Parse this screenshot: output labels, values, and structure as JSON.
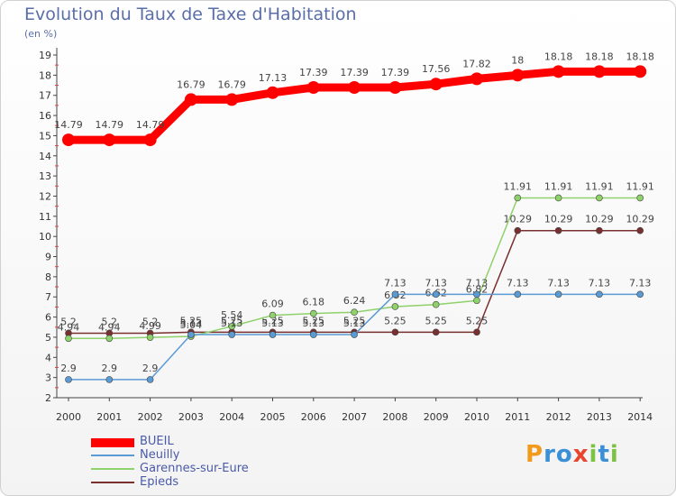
{
  "title": "Evolution du Taux de Taxe d'Habitation",
  "unit": "(en %)",
  "logo": {
    "letters": [
      "P",
      "r",
      "o",
      "x",
      "i",
      "t",
      "i"
    ],
    "colors": [
      "#f29a1c",
      "#3a8fd6",
      "#3a8fd6",
      "#e8452c",
      "#7cc243",
      "#3a8fd6",
      "#7cc243"
    ]
  },
  "chart_data": {
    "type": "line",
    "x": [
      "2000",
      "2001",
      "2002",
      "2003",
      "2004",
      "2005",
      "2006",
      "2007",
      "2008",
      "2009",
      "2010",
      "2011",
      "2012",
      "2013",
      "2014"
    ],
    "ylim": [
      2,
      19
    ],
    "yticks": [
      "2",
      "3",
      "4",
      "5",
      "6",
      "7",
      "8",
      "9",
      "10",
      "11",
      "12",
      "13",
      "14",
      "15",
      "16",
      "17",
      "18",
      "19"
    ],
    "grid": false,
    "legend_position": "bottom-left",
    "series": [
      {
        "name": "BUEIL",
        "color": "#ff0000",
        "values": [
          14.79,
          14.79,
          14.79,
          16.79,
          16.79,
          17.13,
          17.39,
          17.39,
          17.39,
          17.56,
          17.82,
          18,
          18.18,
          18.18,
          18.18
        ],
        "labels": [
          "14.79",
          "14.79",
          "14.79",
          "16.79",
          "16.79",
          "17.13",
          "17.39",
          "17.39",
          "17.39",
          "17.56",
          "17.82",
          "18",
          "18.18",
          "18.18",
          "18.18"
        ]
      },
      {
        "name": "Neuilly",
        "color": "#5b9bd5",
        "values": [
          2.9,
          2.9,
          2.9,
          5.13,
          5.13,
          5.13,
          5.13,
          5.13,
          7.13,
          7.13,
          7.13,
          7.13,
          7.13,
          7.13,
          7.13
        ],
        "labels": [
          "2.9",
          "2.9",
          "2.9",
          "5.13",
          "5.13",
          "5.13",
          "5.13",
          "5.13",
          "7.13",
          "7.13",
          "7.13",
          "7.13",
          "7.13",
          "7.13",
          "7.13"
        ]
      },
      {
        "name": "Garennes-sur-Eure",
        "color": "#8fd16a",
        "values": [
          4.94,
          4.94,
          4.99,
          5.04,
          5.54,
          6.09,
          6.18,
          6.24,
          6.52,
          6.62,
          6.82,
          11.91,
          11.91,
          11.91,
          11.91
        ],
        "labels": [
          "4.94",
          "4.94",
          "4.99",
          "5.04",
          "5.54",
          "6.09",
          "6.18",
          "6.24",
          "6.52",
          "6.62",
          "6.82",
          "11.91",
          "11.91",
          "11.91",
          "11.91"
        ]
      },
      {
        "name": "Epieds",
        "color": "#7a2f2f",
        "values": [
          5.2,
          5.2,
          5.2,
          5.25,
          5.25,
          5.25,
          5.25,
          5.25,
          5.25,
          5.25,
          5.25,
          10.29,
          10.29,
          10.29,
          10.29
        ],
        "labels": [
          "5.2",
          "5.2",
          "5.2",
          "5.25",
          "5.25",
          "5.25",
          "5.25",
          "5.25",
          "5.25",
          "5.25",
          "5.25",
          "10.29",
          "10.29",
          "10.29",
          "10.29"
        ]
      }
    ]
  }
}
